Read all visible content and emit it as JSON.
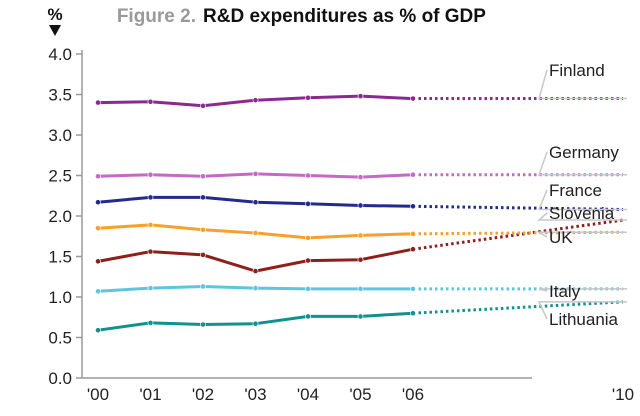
{
  "figure_label": "Figure 2.",
  "title": "R&D expenditures as % of GDP",
  "unit_label": "%",
  "chart_data": {
    "type": "line",
    "title": "R&D expenditures as % of GDP",
    "ylabel": "%",
    "xlabel": "",
    "x": [
      2000,
      2001,
      2002,
      2003,
      2004,
      2005,
      2006
    ],
    "x_tick_labels": [
      "'00",
      "'01",
      "'02",
      "'03",
      "'04",
      "'05",
      "'06",
      "'10"
    ],
    "x_tick_years": [
      2000,
      2001,
      2002,
      2003,
      2004,
      2005,
      2006,
      2010
    ],
    "projection_year": 2010,
    "ylim": [
      0.0,
      4.0
    ],
    "yticks": [
      "0.0",
      "0.5",
      "1.0",
      "1.5",
      "2.0",
      "2.5",
      "3.0",
      "3.5",
      "4.0"
    ],
    "grid": false,
    "legend": "labels at line ends",
    "series": [
      {
        "name": "Finland",
        "color": "#8b2a8e",
        "values": [
          3.4,
          3.41,
          3.36,
          3.43,
          3.46,
          3.48,
          3.45
        ],
        "projection": 3.45
      },
      {
        "name": "Germany",
        "color": "#c46ac6",
        "values": [
          2.49,
          2.51,
          2.49,
          2.52,
          2.5,
          2.48,
          2.51
        ],
        "projection": 2.51
      },
      {
        "name": "France",
        "color": "#232a8c",
        "values": [
          2.17,
          2.23,
          2.23,
          2.17,
          2.15,
          2.13,
          2.12
        ],
        "projection": 2.08
      },
      {
        "name": "Slovenia",
        "color": "#8e1f1b",
        "values": [
          1.44,
          1.56,
          1.52,
          1.32,
          1.45,
          1.46,
          1.59
        ],
        "projection": 1.95
      },
      {
        "name": "UK",
        "color": "#f7a12c",
        "values": [
          1.85,
          1.89,
          1.83,
          1.79,
          1.73,
          1.76,
          1.78
        ],
        "projection": 1.8
      },
      {
        "name": "Italy",
        "color": "#5ec6dc",
        "values": [
          1.07,
          1.11,
          1.13,
          1.11,
          1.1,
          1.1,
          1.1
        ],
        "projection": 1.1
      },
      {
        "name": "Lithuania",
        "color": "#119090",
        "values": [
          0.59,
          0.68,
          0.66,
          0.67,
          0.76,
          0.76,
          0.8
        ],
        "projection": 0.94
      }
    ]
  }
}
